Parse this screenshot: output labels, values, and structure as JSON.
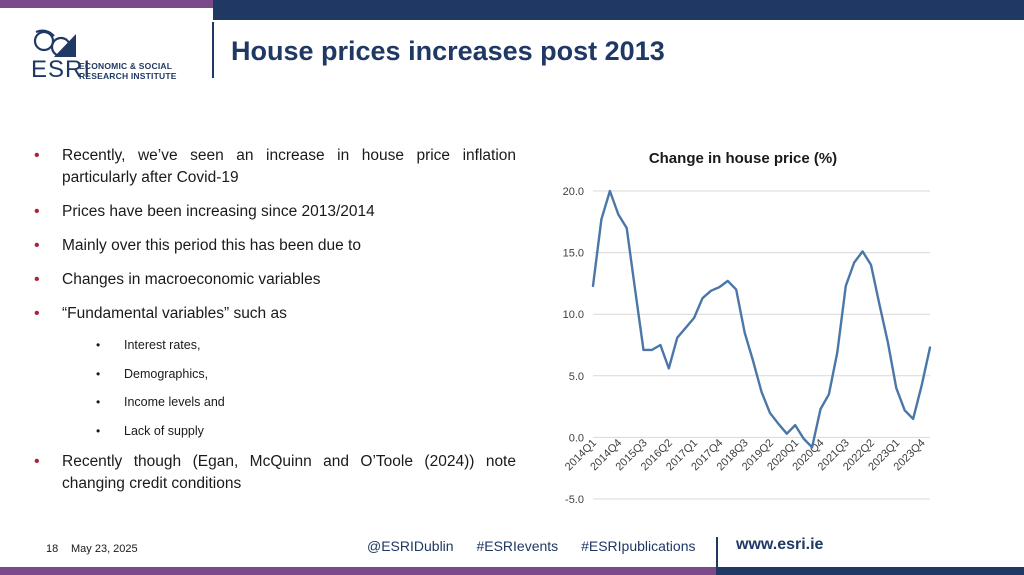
{
  "logo": {
    "abbr": "ESRI",
    "line1": "ECONOMIC & SOCIAL",
    "line2": "RESEARCH INSTITUTE"
  },
  "slide": {
    "title": "House prices increases post 2013"
  },
  "bullets": [
    "Recently, we’ve seen an increase in house price inflation particularly after Covid-19",
    "Prices have been increasing since 2013/2014",
    "Mainly over this period this has been due to",
    "Changes in macroeconomic variables",
    "“Fundamental variables” such as"
  ],
  "sub_bullets": [
    "Interest rates,",
    "Demographics,",
    "Income levels and",
    "Lack of supply"
  ],
  "last_bullet": "Recently though (Egan, McQuinn and O’Toole (2024)) note changing credit conditions",
  "footer": {
    "page": "18",
    "date": "May 23, 2025",
    "tags": [
      "@ESRIDublin",
      "#ESRIevents",
      "#ESRIpublications"
    ],
    "url": "www.esri.ie"
  },
  "colors": {
    "navy": "#1f3864",
    "purple": "#7b4a8b",
    "bullet_red": "#b0203a",
    "series": "#4a77a8"
  },
  "chart_data": {
    "type": "line",
    "title": "Change in house price (%)",
    "xlabel": "",
    "ylabel": "",
    "ylim": [
      -5,
      20
    ],
    "yticks": [
      "-5.0",
      "0.0",
      "5.0",
      "10.0",
      "15.0",
      "20.0"
    ],
    "grid": true,
    "x": [
      "2014Q1",
      "2014Q2",
      "2014Q3",
      "2014Q4",
      "2015Q1",
      "2015Q2",
      "2015Q3",
      "2015Q4",
      "2016Q1",
      "2016Q2",
      "2016Q3",
      "2016Q4",
      "2017Q1",
      "2017Q2",
      "2017Q3",
      "2017Q4",
      "2018Q1",
      "2018Q2",
      "2018Q3",
      "2018Q4",
      "2019Q1",
      "2019Q2",
      "2019Q3",
      "2019Q4",
      "2020Q1",
      "2020Q2",
      "2020Q3",
      "2020Q4",
      "2021Q1",
      "2021Q2",
      "2021Q3",
      "2021Q4",
      "2022Q1",
      "2022Q2",
      "2022Q3",
      "2022Q4",
      "2023Q1",
      "2023Q2",
      "2023Q3",
      "2023Q4",
      "2024Q1"
    ],
    "xtick_labels": [
      "2014Q1",
      "2014Q4",
      "2015Q3",
      "2016Q2",
      "2017Q1",
      "2017Q4",
      "2018Q3",
      "2019Q2",
      "2020Q1",
      "2020Q4",
      "2021Q3",
      "2022Q2",
      "2023Q1",
      "2023Q4"
    ],
    "series": [
      {
        "values": [
          12.3,
          17.7,
          20.0,
          18.1,
          17.0,
          12.0,
          7.1,
          7.1,
          7.5,
          5.6,
          8.1,
          8.9,
          9.7,
          11.3,
          11.9,
          12.2,
          12.7,
          12.0,
          8.5,
          6.2,
          3.7,
          2.0,
          1.1,
          0.3,
          1.0,
          -0.1,
          -0.8,
          2.3,
          3.5,
          6.9,
          12.3,
          14.2,
          15.1,
          14.0,
          10.8,
          7.7,
          4.0,
          2.2,
          1.5,
          4.2,
          7.3
        ]
      }
    ]
  }
}
